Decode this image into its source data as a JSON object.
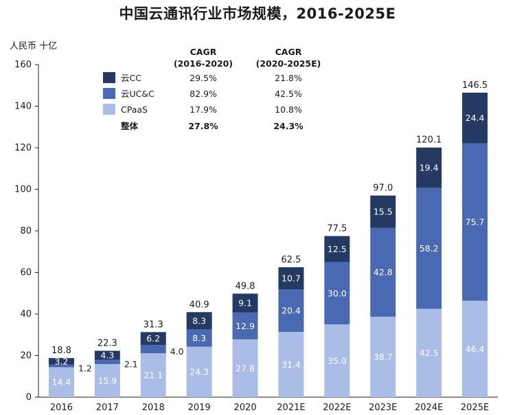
{
  "chart_data": {
    "type": "bar",
    "stacked": true,
    "title": "中国云通讯行业市场规模，2016-2025E",
    "unit_label": "人民币 十亿",
    "categories": [
      "2016",
      "2017",
      "2018",
      "2019",
      "2020",
      "2021E",
      "2022E",
      "2023E",
      "2024E",
      "2025E"
    ],
    "series": [
      {
        "name": "CPaaS",
        "values": [
          14.4,
          15.9,
          21.1,
          24.3,
          27.8,
          31.4,
          35.0,
          38.7,
          42.5,
          46.4
        ],
        "color": "#a9bde6"
      },
      {
        "name": "云UC&C",
        "values": [
          1.2,
          2.1,
          4.0,
          8.3,
          12.9,
          20.4,
          30.0,
          42.8,
          58.2,
          75.7
        ],
        "color": "#4a69b3"
      },
      {
        "name": "云CC",
        "values": [
          3.2,
          4.3,
          6.2,
          8.3,
          9.1,
          10.7,
          12.5,
          15.5,
          19.4,
          24.4
        ],
        "color": "#243a63"
      }
    ],
    "segment_labels": [
      [
        "14.4",
        "1.2",
        "3.2"
      ],
      [
        "15.9",
        "2.1",
        "4.3"
      ],
      [
        "21.1",
        "4.0",
        "6.2"
      ],
      [
        "24.3",
        "8.3",
        "8.3"
      ],
      [
        "27.8",
        "12.9",
        "9.1"
      ],
      [
        "31.4",
        "20.4",
        "10.7"
      ],
      [
        "35.0",
        "30.0",
        "12.5"
      ],
      [
        "38.7",
        "42.8",
        "15.5"
      ],
      [
        "42.5",
        "58.2",
        "19.4"
      ],
      [
        "46.4",
        "75.7",
        "24.4"
      ]
    ],
    "totals": [
      18.8,
      22.3,
      31.3,
      40.9,
      49.8,
      62.5,
      77.5,
      97.0,
      120.1,
      146.5
    ],
    "total_labels": [
      "18.8",
      "22.3",
      "31.3",
      "40.9",
      "49.8",
      "62.5",
      "77.5",
      "97.0",
      "120.1",
      "146.5"
    ],
    "ylim": [
      0,
      160
    ],
    "yticks": [
      0,
      20,
      40,
      60,
      80,
      100,
      120,
      140,
      160
    ],
    "ytick_labels": [
      "0",
      "20",
      "40",
      "60",
      "80",
      "100",
      "120",
      "140",
      "160"
    ],
    "legend": {
      "placement": "top-left",
      "headers": [
        [
          "CAGR",
          "(2016-2020)"
        ],
        [
          "CAGR",
          "(2020-2025E)"
        ]
      ],
      "rows": [
        {
          "label": "云CC",
          "cagr_2016_2020": "29.5%",
          "cagr_2020_2025": "21.8%",
          "color": "#243a63"
        },
        {
          "label": "云UC&C",
          "cagr_2016_2020": "82.9%",
          "cagr_2020_2025": "42.5%",
          "color": "#4a69b3"
        },
        {
          "label": "CPaaS",
          "cagr_2016_2020": "17.9%",
          "cagr_2020_2025": "10.8%",
          "color": "#a9bde6"
        },
        {
          "label": "整体",
          "cagr_2016_2020": "27.8%",
          "cagr_2020_2025": "24.3%",
          "color": ""
        }
      ]
    }
  }
}
